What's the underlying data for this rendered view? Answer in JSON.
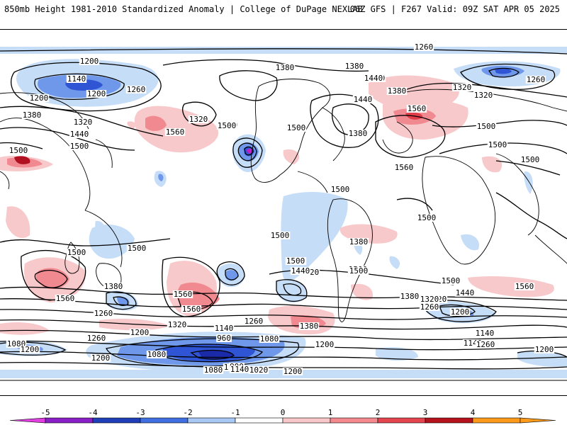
{
  "header": {
    "left_title": "850mb Height 1981-2010 Standardized Anomaly | College of DuPage NEXLAB",
    "right_title": "06Z GFS | F267 Valid: 09Z SAT APR 05 2025"
  },
  "legend": {
    "ticks": [
      "-5",
      "-4",
      "-3",
      "-2",
      "-1",
      "0",
      "1",
      "2",
      "3",
      "4",
      "5"
    ],
    "colors": [
      "#e040e0",
      "#8a1fc8",
      "#1f3fb8",
      "#3f6fe0",
      "#a8c8f5",
      "#ffffff",
      "#f9c7c9",
      "#f48a8f",
      "#e5454f",
      "#b5121b",
      "#ff9a1a"
    ]
  },
  "anomaly_colors": {
    "neg1": "#c6ddf8",
    "neg2": "#6f98ea",
    "neg3": "#2f55d4",
    "neg4": "#1a2aa8",
    "neg5": "#c020c8",
    "pos1": "#f8c9cb",
    "pos2": "#f08a90",
    "pos3": "#e23c48",
    "pos4": "#b01020"
  },
  "contour_labels": [
    "1260",
    "1200",
    "1140",
    "1200",
    "1260",
    "1320",
    "1380",
    "1440",
    "1500",
    "1500",
    "1380",
    "1560",
    "1320",
    "1500",
    "1320",
    "1380",
    "1440",
    "1440",
    "1500",
    "1560",
    "1380",
    "1440",
    "1380",
    "1500",
    "1200",
    "1260",
    "1320",
    "1500",
    "1500",
    "1500",
    "1560",
    "1500",
    "1500",
    "1500",
    "1500",
    "1500",
    "1500",
    "1560",
    "1560",
    "1560",
    "1380",
    "1260",
    "1320",
    "1200",
    "1080",
    "1200",
    "1260",
    "1200",
    "1080",
    "960",
    "1020",
    "1140",
    "1080",
    "1020",
    "900",
    "1080",
    "1140",
    "1200",
    "1260",
    "1380",
    "1320",
    "1200",
    "1380",
    "1440",
    "1500",
    "1140",
    "1140",
    "1260",
    "1200",
    "1260",
    "1320",
    "1320",
    "1440",
    "1500",
    "1560",
    "1500",
    "1380",
    "1200",
    "1500"
  ]
}
